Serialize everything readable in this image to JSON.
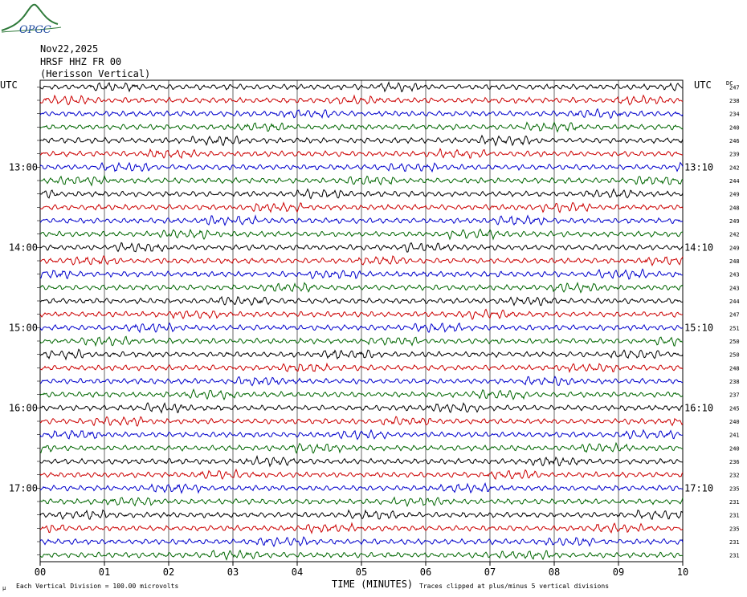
{
  "logo": {
    "text": "OPGC",
    "color": "#2f7a3a",
    "text_color": "#1f4aa0"
  },
  "header": {
    "date": "Nov22,2025",
    "station": "HRSF HHZ FR 00",
    "location": "(Herisson Vertical)"
  },
  "left_axis_title": "UTC",
  "right_axis_title": "UTC",
  "dc_label": "DC",
  "footer": {
    "scale_note": "Each Vertical Division =  100.00 microvolts",
    "axis_title": "TIME (MINUTES)",
    "clip_note": "Traces clipped at plus/minus 5 vertical divisions",
    "corner_mark": "μ"
  },
  "colors": {
    "trace_cycle": [
      "#000000",
      "#cc0000",
      "#0000cc",
      "#006600"
    ],
    "grid": "#000000"
  },
  "chart_data": {
    "type": "line",
    "xlabel": "TIME (MINUTES)",
    "xlim": [
      0,
      10
    ],
    "x_ticks": [
      "00",
      "01",
      "02",
      "03",
      "04",
      "05",
      "06",
      "07",
      "08",
      "09",
      "10"
    ],
    "left_hour_labels": [
      {
        "trace": 6,
        "label": "13:00"
      },
      {
        "trace": 12,
        "label": "14:00"
      },
      {
        "trace": 18,
        "label": "15:00"
      },
      {
        "trace": 24,
        "label": "16:00"
      },
      {
        "trace": 30,
        "label": "17:00"
      }
    ],
    "right_hour_labels": [
      {
        "trace": 6,
        "label": "13:10"
      },
      {
        "trace": 12,
        "label": "14:10"
      },
      {
        "trace": 18,
        "label": "15:10"
      },
      {
        "trace": 24,
        "label": "16:10"
      },
      {
        "trace": 30,
        "label": "17:10"
      }
    ],
    "dc_offsets": [
      247,
      238,
      234,
      240,
      246,
      239,
      242,
      244,
      249,
      248,
      249,
      242,
      249,
      248,
      243,
      243,
      244,
      247,
      251,
      250,
      250,
      248,
      238,
      237,
      245,
      240,
      241,
      240,
      236,
      232,
      235,
      231,
      231,
      235,
      231,
      231
    ],
    "trace_count": 36,
    "trace_minutes": 10,
    "grid": true,
    "units": "microvolts",
    "division_value": 100.0,
    "clip_divisions": 5
  }
}
